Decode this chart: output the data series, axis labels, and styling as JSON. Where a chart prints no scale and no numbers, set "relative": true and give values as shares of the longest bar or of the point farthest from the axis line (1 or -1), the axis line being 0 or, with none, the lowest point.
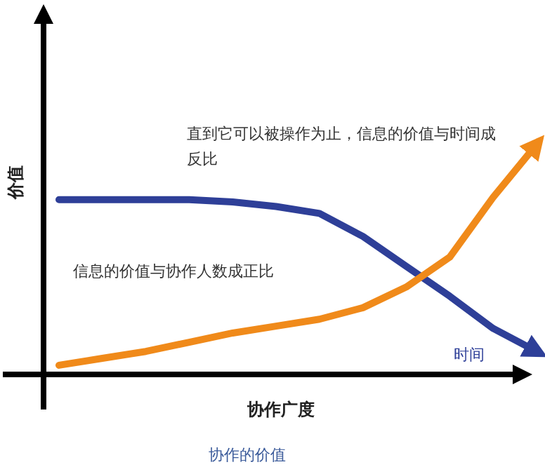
{
  "chart_data": {
    "type": "line",
    "relative": true,
    "title": "协作的价值",
    "xlabel": "协作广度",
    "ylabel": "价值",
    "annotations": [
      "直到它可以被操作为止，信息的价值与时间成反比",
      "信息的价值与协作人数成正比"
    ],
    "categories": [
      null,
      null,
      null,
      null,
      null,
      null,
      null,
      null,
      null,
      null,
      null,
      null
    ],
    "series": [
      {
        "name": "时间",
        "color": "#2e3f98",
        "values": [
          0.76,
          0.76,
          0.76,
          0.76,
          0.75,
          0.73,
          0.7,
          0.6,
          0.47,
          0.34,
          0.2,
          0.1
        ]
      },
      {
        "color": "#f08a1a",
        "values": [
          0.04,
          0.07,
          0.1,
          0.14,
          0.18,
          0.21,
          0.24,
          0.29,
          0.38,
          0.51,
          0.77,
          1.0
        ]
      }
    ]
  }
}
